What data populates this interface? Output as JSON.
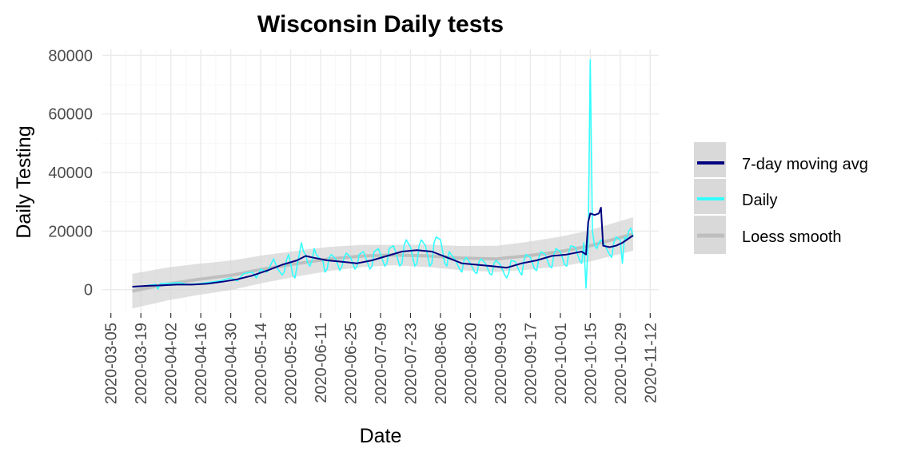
{
  "chart_data": {
    "type": "line",
    "title": "Wisconsin Daily tests",
    "xlabel": "Date",
    "ylabel": "Daily Testing",
    "x_range": [
      "2020-03-01",
      "2020-11-16"
    ],
    "ylim": [
      -8000,
      82000
    ],
    "grid": true,
    "legend_position": "right",
    "x_ticks": [
      "2020-03-05",
      "2020-03-19",
      "2020-04-02",
      "2020-04-16",
      "2020-04-30",
      "2020-05-14",
      "2020-05-28",
      "2020-06-11",
      "2020-06-25",
      "2020-07-09",
      "2020-07-23",
      "2020-08-06",
      "2020-08-20",
      "2020-09-03",
      "2020-09-17",
      "2020-10-01",
      "2020-10-15",
      "2020-10-29",
      "2020-11-12"
    ],
    "y_ticks": [
      0,
      20000,
      40000,
      60000,
      80000
    ],
    "legend": [
      {
        "name": "7-day moving avg",
        "color": "#000080"
      },
      {
        "name": "Daily",
        "color": "#33ffff"
      },
      {
        "name": "Loess smooth",
        "color": "#bebebe"
      }
    ],
    "series": [
      {
        "name": "Daily",
        "color": "#33ffff",
        "points": [
          [
            "2020-03-15",
            1000
          ],
          [
            "2020-03-20",
            1200
          ],
          [
            "2020-03-23",
            1500
          ],
          [
            "2020-03-26",
            1800
          ],
          [
            "2020-03-27",
            200
          ],
          [
            "2020-03-28",
            2000
          ],
          [
            "2020-04-02",
            2200
          ],
          [
            "2020-04-06",
            2400
          ],
          [
            "2020-04-10",
            1800
          ],
          [
            "2020-04-15",
            2000
          ],
          [
            "2020-04-20",
            2500
          ],
          [
            "2020-04-25",
            3000
          ],
          [
            "2020-04-30",
            4000
          ],
          [
            "2020-05-03",
            3000
          ],
          [
            "2020-05-06",
            5500
          ],
          [
            "2020-05-10",
            6000
          ],
          [
            "2020-05-12",
            4000
          ],
          [
            "2020-05-14",
            7000
          ],
          [
            "2020-05-17",
            6000
          ],
          [
            "2020-05-19",
            9000
          ],
          [
            "2020-05-20",
            10500
          ],
          [
            "2020-05-22",
            7000
          ],
          [
            "2020-05-24",
            5000
          ],
          [
            "2020-05-25",
            6000
          ],
          [
            "2020-05-26",
            10000
          ],
          [
            "2020-05-27",
            12000
          ],
          [
            "2020-05-28",
            9000
          ],
          [
            "2020-05-29",
            5000
          ],
          [
            "2020-05-30",
            4000
          ],
          [
            "2020-05-31",
            8000
          ],
          [
            "2020-06-01",
            12000
          ],
          [
            "2020-06-02",
            16000
          ],
          [
            "2020-06-03",
            13000
          ],
          [
            "2020-06-04",
            12000
          ],
          [
            "2020-06-05",
            9000
          ],
          [
            "2020-06-06",
            8000
          ],
          [
            "2020-06-07",
            10000
          ],
          [
            "2020-06-08",
            14000
          ],
          [
            "2020-06-09",
            12000
          ],
          [
            "2020-06-10",
            11000
          ],
          [
            "2020-06-12",
            10000
          ],
          [
            "2020-06-13",
            6000
          ],
          [
            "2020-06-14",
            7000
          ],
          [
            "2020-06-15",
            11000
          ],
          [
            "2020-06-16",
            12000
          ],
          [
            "2020-06-18",
            10500
          ],
          [
            "2020-06-20",
            6500
          ],
          [
            "2020-06-21",
            8000
          ],
          [
            "2020-06-22",
            11000
          ],
          [
            "2020-06-23",
            12500
          ],
          [
            "2020-06-25",
            11000
          ],
          [
            "2020-06-26",
            9000
          ],
          [
            "2020-06-27",
            7000
          ],
          [
            "2020-06-28",
            8000
          ],
          [
            "2020-06-29",
            12000
          ],
          [
            "2020-07-01",
            13000
          ],
          [
            "2020-07-02",
            11000
          ],
          [
            "2020-07-04",
            7000
          ],
          [
            "2020-07-05",
            8000
          ],
          [
            "2020-07-06",
            13000
          ],
          [
            "2020-07-08",
            14000
          ],
          [
            "2020-07-09",
            12000
          ],
          [
            "2020-07-11",
            8000
          ],
          [
            "2020-07-12",
            9000
          ],
          [
            "2020-07-13",
            14000
          ],
          [
            "2020-07-15",
            15000
          ],
          [
            "2020-07-16",
            13000
          ],
          [
            "2020-07-18",
            8000
          ],
          [
            "2020-07-19",
            9000
          ],
          [
            "2020-07-20",
            15000
          ],
          [
            "2020-07-21",
            17000
          ],
          [
            "2020-07-23",
            14500
          ],
          [
            "2020-07-25",
            8000
          ],
          [
            "2020-07-26",
            9000
          ],
          [
            "2020-07-27",
            15000
          ],
          [
            "2020-07-28",
            17000
          ],
          [
            "2020-07-30",
            15000
          ],
          [
            "2020-08-01",
            8000
          ],
          [
            "2020-08-02",
            9000
          ],
          [
            "2020-08-03",
            16000
          ],
          [
            "2020-08-04",
            18000
          ],
          [
            "2020-08-06",
            17000
          ],
          [
            "2020-08-08",
            9000
          ],
          [
            "2020-08-09",
            8000
          ],
          [
            "2020-08-10",
            13000
          ],
          [
            "2020-08-11",
            12000
          ],
          [
            "2020-08-13",
            10000
          ],
          [
            "2020-08-15",
            7000
          ],
          [
            "2020-08-16",
            6000
          ],
          [
            "2020-08-17",
            10000
          ],
          [
            "2020-08-18",
            11000
          ],
          [
            "2020-08-20",
            9000
          ],
          [
            "2020-08-22",
            6000
          ],
          [
            "2020-08-23",
            5500
          ],
          [
            "2020-08-24",
            9500
          ],
          [
            "2020-08-25",
            10500
          ],
          [
            "2020-08-27",
            9000
          ],
          [
            "2020-08-29",
            5500
          ],
          [
            "2020-08-30",
            5000
          ],
          [
            "2020-08-31",
            9000
          ],
          [
            "2020-09-01",
            10000
          ],
          [
            "2020-09-03",
            8500
          ],
          [
            "2020-09-05",
            5000
          ],
          [
            "2020-09-06",
            4000
          ],
          [
            "2020-09-07",
            6000
          ],
          [
            "2020-09-08",
            10000
          ],
          [
            "2020-09-10",
            9500
          ],
          [
            "2020-09-12",
            6000
          ],
          [
            "2020-09-13",
            5000
          ],
          [
            "2020-09-14",
            10000
          ],
          [
            "2020-09-15",
            12000
          ],
          [
            "2020-09-17",
            11000
          ],
          [
            "2020-09-19",
            7000
          ],
          [
            "2020-09-20",
            6500
          ],
          [
            "2020-09-21",
            11000
          ],
          [
            "2020-09-22",
            13000
          ],
          [
            "2020-09-24",
            12000
          ],
          [
            "2020-09-26",
            8000
          ],
          [
            "2020-09-27",
            7500
          ],
          [
            "2020-09-28",
            12000
          ],
          [
            "2020-09-29",
            14000
          ],
          [
            "2020-10-01",
            13000
          ],
          [
            "2020-10-03",
            8500
          ],
          [
            "2020-10-04",
            8000
          ],
          [
            "2020-10-05",
            13000
          ],
          [
            "2020-10-06",
            15000
          ],
          [
            "2020-10-08",
            14500
          ],
          [
            "2020-10-10",
            10000
          ],
          [
            "2020-10-11",
            9000
          ],
          [
            "2020-10-12",
            16000
          ],
          [
            "2020-10-13",
            500
          ],
          [
            "2020-10-14",
            16000
          ],
          [
            "2020-10-15",
            78500
          ],
          [
            "2020-10-16",
            20000
          ],
          [
            "2020-10-17",
            15000
          ],
          [
            "2020-10-18",
            14000
          ],
          [
            "2020-10-19",
            16000
          ],
          [
            "2020-10-20",
            17000
          ],
          [
            "2020-10-22",
            15000
          ],
          [
            "2020-10-24",
            12000
          ],
          [
            "2020-10-25",
            11000
          ],
          [
            "2020-10-26",
            16000
          ],
          [
            "2020-10-27",
            18000
          ],
          [
            "2020-10-29",
            17000
          ],
          [
            "2020-10-30",
            9000
          ],
          [
            "2020-10-31",
            18000
          ],
          [
            "2020-11-01",
            17000
          ],
          [
            "2020-11-02",
            20000
          ],
          [
            "2020-11-03",
            21000
          ],
          [
            "2020-11-04",
            18000
          ]
        ]
      },
      {
        "name": "7-day moving avg",
        "color": "#000080",
        "points": [
          [
            "2020-03-15",
            1000
          ],
          [
            "2020-03-22",
            1300
          ],
          [
            "2020-03-29",
            1500
          ],
          [
            "2020-04-05",
            1700
          ],
          [
            "2020-04-12",
            1700
          ],
          [
            "2020-04-19",
            2000
          ],
          [
            "2020-04-26",
            2700
          ],
          [
            "2020-05-03",
            3500
          ],
          [
            "2020-05-10",
            4800
          ],
          [
            "2020-05-17",
            6500
          ],
          [
            "2020-05-24",
            8500
          ],
          [
            "2020-05-31",
            10000
          ],
          [
            "2020-06-04",
            11500
          ],
          [
            "2020-06-07",
            11000
          ],
          [
            "2020-06-14",
            10000
          ],
          [
            "2020-06-21",
            9500
          ],
          [
            "2020-06-28",
            9000
          ],
          [
            "2020-07-05",
            10000
          ],
          [
            "2020-07-12",
            11500
          ],
          [
            "2020-07-19",
            13000
          ],
          [
            "2020-07-26",
            13500
          ],
          [
            "2020-08-02",
            13000
          ],
          [
            "2020-08-09",
            11000
          ],
          [
            "2020-08-16",
            9000
          ],
          [
            "2020-08-23",
            8500
          ],
          [
            "2020-08-30",
            8000
          ],
          [
            "2020-09-06",
            7500
          ],
          [
            "2020-09-13",
            9000
          ],
          [
            "2020-09-20",
            10000
          ],
          [
            "2020-09-27",
            11500
          ],
          [
            "2020-10-04",
            12000
          ],
          [
            "2020-10-11",
            13000
          ],
          [
            "2020-10-13",
            12000
          ],
          [
            "2020-10-14",
            23000
          ],
          [
            "2020-10-15",
            26000
          ],
          [
            "2020-10-17",
            25500
          ],
          [
            "2020-10-19",
            26000
          ],
          [
            "2020-10-20",
            28000
          ],
          [
            "2020-10-21",
            15000
          ],
          [
            "2020-10-24",
            14500
          ],
          [
            "2020-10-27",
            15000
          ],
          [
            "2020-10-30",
            16000
          ],
          [
            "2020-11-02",
            17500
          ],
          [
            "2020-11-04",
            18500
          ]
        ]
      },
      {
        "name": "Loess smooth",
        "color": "#bebebe",
        "points": [
          [
            "2020-03-15",
            -500
          ],
          [
            "2020-04-01",
            2000
          ],
          [
            "2020-04-15",
            3500
          ],
          [
            "2020-05-01",
            5000
          ],
          [
            "2020-05-15",
            7000
          ],
          [
            "2020-06-01",
            9000
          ],
          [
            "2020-06-15",
            10500
          ],
          [
            "2020-07-01",
            11500
          ],
          [
            "2020-07-15",
            11800
          ],
          [
            "2020-08-01",
            11500
          ],
          [
            "2020-08-15",
            10800
          ],
          [
            "2020-09-01",
            10500
          ],
          [
            "2020-09-15",
            11500
          ],
          [
            "2020-10-01",
            13000
          ],
          [
            "2020-10-15",
            15000
          ],
          [
            "2020-11-04",
            19000
          ]
        ]
      }
    ]
  }
}
